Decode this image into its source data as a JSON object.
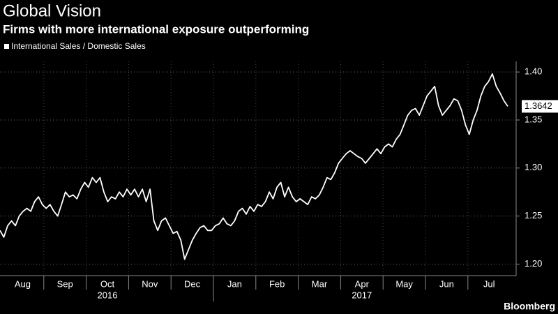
{
  "chart_data": {
    "type": "line",
    "title": "Global Vision",
    "subtitle": "Firms with more international exposure outperforming",
    "source": "Bloomberg",
    "month_labels": [
      "Aug",
      "Sep",
      "Oct",
      "Nov",
      "Dec",
      "Jan",
      "Feb",
      "Mar",
      "Apr",
      "May",
      "Jun",
      "Jul"
    ],
    "year_labels": [
      "2016",
      "2017"
    ],
    "series": [
      {
        "name": "International Sales / Domestic Sales",
        "color": "#ffffff",
        "values": [
          1.235,
          1.228,
          1.24,
          1.245,
          1.24,
          1.25,
          1.255,
          1.258,
          1.255,
          1.265,
          1.27,
          1.262,
          1.258,
          1.262,
          1.255,
          1.25,
          1.262,
          1.275,
          1.27,
          1.272,
          1.268,
          1.278,
          1.285,
          1.28,
          1.29,
          1.285,
          1.29,
          1.275,
          1.265,
          1.27,
          1.268,
          1.275,
          1.27,
          1.278,
          1.272,
          1.278,
          1.27,
          1.278,
          1.265,
          1.278,
          1.245,
          1.235,
          1.245,
          1.248,
          1.24,
          1.232,
          1.234,
          1.225,
          1.205,
          1.215,
          1.225,
          1.232,
          1.238,
          1.24,
          1.235,
          1.235,
          1.24,
          1.242,
          1.248,
          1.242,
          1.24,
          1.245,
          1.255,
          1.258,
          1.252,
          1.26,
          1.255,
          1.262,
          1.26,
          1.265,
          1.275,
          1.268,
          1.28,
          1.285,
          1.27,
          1.28,
          1.27,
          1.265,
          1.268,
          1.265,
          1.262,
          1.27,
          1.268,
          1.272,
          1.28,
          1.29,
          1.288,
          1.295,
          1.305,
          1.31,
          1.315,
          1.318,
          1.315,
          1.312,
          1.31,
          1.305,
          1.31,
          1.315,
          1.32,
          1.315,
          1.322,
          1.325,
          1.322,
          1.33,
          1.335,
          1.345,
          1.355,
          1.36,
          1.362,
          1.355,
          1.365,
          1.375,
          1.38,
          1.385,
          1.365,
          1.355,
          1.36,
          1.365,
          1.372,
          1.37,
          1.36,
          1.345,
          1.335,
          1.35,
          1.36,
          1.375,
          1.385,
          1.39,
          1.398,
          1.385,
          1.378,
          1.37,
          1.3642
        ]
      }
    ],
    "ylim": [
      1.188,
      1.411
    ],
    "yticks": [
      {
        "value": 1.2,
        "label": "1.20"
      },
      {
        "value": 1.25,
        "label": "1.25"
      },
      {
        "value": 1.3,
        "label": "1.30"
      },
      {
        "value": 1.35,
        "label": "1.35"
      },
      {
        "value": 1.4,
        "label": "1.40"
      }
    ],
    "grid": true
  }
}
